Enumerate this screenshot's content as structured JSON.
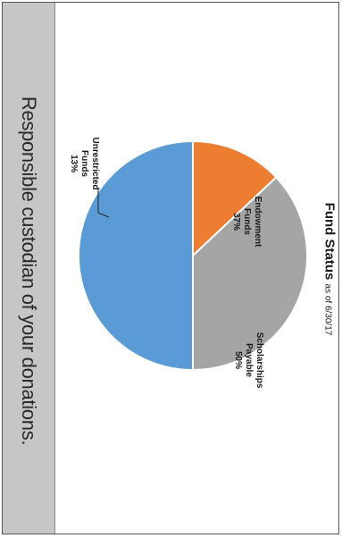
{
  "banner": {
    "text": "Responsible custodian of your donations."
  },
  "chart_data": {
    "type": "pie",
    "title": "Fund Status",
    "subtitle": "as of 6/30/17",
    "slices": [
      {
        "name": "Scholarships Payable",
        "label": "Scholarships\nPayable\n50%",
        "value": 50,
        "color": "#5b9bd5"
      },
      {
        "name": "Unrestricted Funds",
        "label": "Unrestricted\nFunds\n13%",
        "value": 13,
        "color": "#ed7d31"
      },
      {
        "name": "Endowment Funds",
        "label": "Endowment\nFunds\n37%",
        "value": 37,
        "color": "#a5a5a5"
      }
    ]
  }
}
